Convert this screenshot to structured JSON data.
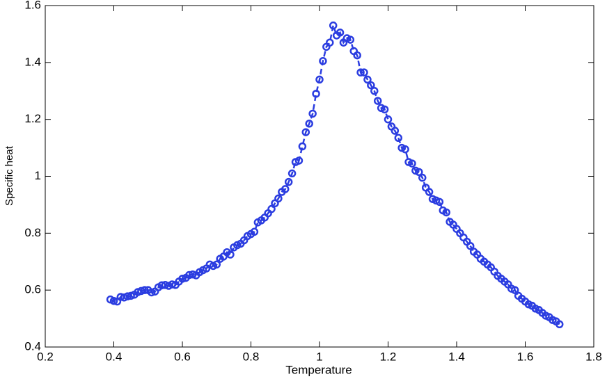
{
  "chart_data": {
    "type": "line",
    "marker": "circle",
    "line_style": "dashed",
    "color": "#2b3de0",
    "xlabel": "Temperature",
    "ylabel": "Specific heat",
    "x": [
      0.39,
      0.4,
      0.41,
      0.42,
      0.43,
      0.44,
      0.45,
      0.46,
      0.47,
      0.48,
      0.49,
      0.5,
      0.51,
      0.52,
      0.53,
      0.54,
      0.55,
      0.56,
      0.57,
      0.58,
      0.59,
      0.6,
      0.61,
      0.62,
      0.63,
      0.64,
      0.65,
      0.66,
      0.67,
      0.68,
      0.69,
      0.7,
      0.71,
      0.72,
      0.73,
      0.74,
      0.75,
      0.76,
      0.77,
      0.78,
      0.79,
      0.8,
      0.81,
      0.82,
      0.83,
      0.84,
      0.85,
      0.86,
      0.87,
      0.88,
      0.89,
      0.9,
      0.91,
      0.92,
      0.93,
      0.94,
      0.95,
      0.96,
      0.97,
      0.98,
      0.99,
      1.0,
      1.01,
      1.02,
      1.03,
      1.04,
      1.05,
      1.06,
      1.07,
      1.08,
      1.09,
      1.1,
      1.11,
      1.12,
      1.13,
      1.14,
      1.15,
      1.16,
      1.17,
      1.18,
      1.19,
      1.2,
      1.21,
      1.22,
      1.23,
      1.24,
      1.25,
      1.26,
      1.27,
      1.28,
      1.29,
      1.3,
      1.31,
      1.32,
      1.33,
      1.34,
      1.35,
      1.36,
      1.37,
      1.38,
      1.39,
      1.4,
      1.41,
      1.42,
      1.43,
      1.44,
      1.45,
      1.46,
      1.47,
      1.48,
      1.49,
      1.5,
      1.51,
      1.52,
      1.53,
      1.54,
      1.55,
      1.56,
      1.57,
      1.58,
      1.59,
      1.6,
      1.61,
      1.62,
      1.63,
      1.64,
      1.65,
      1.66,
      1.67,
      1.68,
      1.69,
      1.7
    ],
    "values": [
      0.567,
      0.562,
      0.56,
      0.576,
      0.574,
      0.578,
      0.58,
      0.584,
      0.593,
      0.597,
      0.6,
      0.6,
      0.592,
      0.595,
      0.61,
      0.617,
      0.618,
      0.615,
      0.62,
      0.618,
      0.63,
      0.64,
      0.643,
      0.653,
      0.655,
      0.652,
      0.663,
      0.67,
      0.676,
      0.69,
      0.685,
      0.69,
      0.71,
      0.718,
      0.733,
      0.725,
      0.75,
      0.758,
      0.763,
      0.775,
      0.79,
      0.797,
      0.805,
      0.838,
      0.845,
      0.855,
      0.87,
      0.885,
      0.905,
      0.922,
      0.945,
      0.955,
      0.98,
      1.01,
      1.05,
      1.055,
      1.105,
      1.155,
      1.185,
      1.22,
      1.29,
      1.34,
      1.405,
      1.455,
      1.47,
      1.53,
      1.495,
      1.505,
      1.47,
      1.485,
      1.48,
      1.44,
      1.425,
      1.365,
      1.365,
      1.34,
      1.32,
      1.3,
      1.265,
      1.24,
      1.235,
      1.2,
      1.175,
      1.16,
      1.135,
      1.1,
      1.095,
      1.05,
      1.045,
      1.02,
      1.015,
      0.995,
      0.96,
      0.945,
      0.92,
      0.915,
      0.91,
      0.88,
      0.873,
      0.84,
      0.83,
      0.815,
      0.8,
      0.785,
      0.77,
      0.755,
      0.735,
      0.725,
      0.71,
      0.7,
      0.69,
      0.68,
      0.665,
      0.65,
      0.64,
      0.63,
      0.62,
      0.605,
      0.6,
      0.58,
      0.57,
      0.56,
      0.55,
      0.545,
      0.535,
      0.53,
      0.52,
      0.51,
      0.505,
      0.495,
      0.49,
      0.48
    ],
    "xlim": [
      0.2,
      1.8
    ],
    "xticks": [
      0.2,
      0.4,
      0.6,
      0.8,
      1,
      1.2,
      1.4,
      1.6,
      1.8
    ],
    "ylim": [
      0.4,
      1.6
    ],
    "yticks": [
      0.4,
      0.6,
      0.8,
      1,
      1.2,
      1.4,
      1.6
    ]
  }
}
